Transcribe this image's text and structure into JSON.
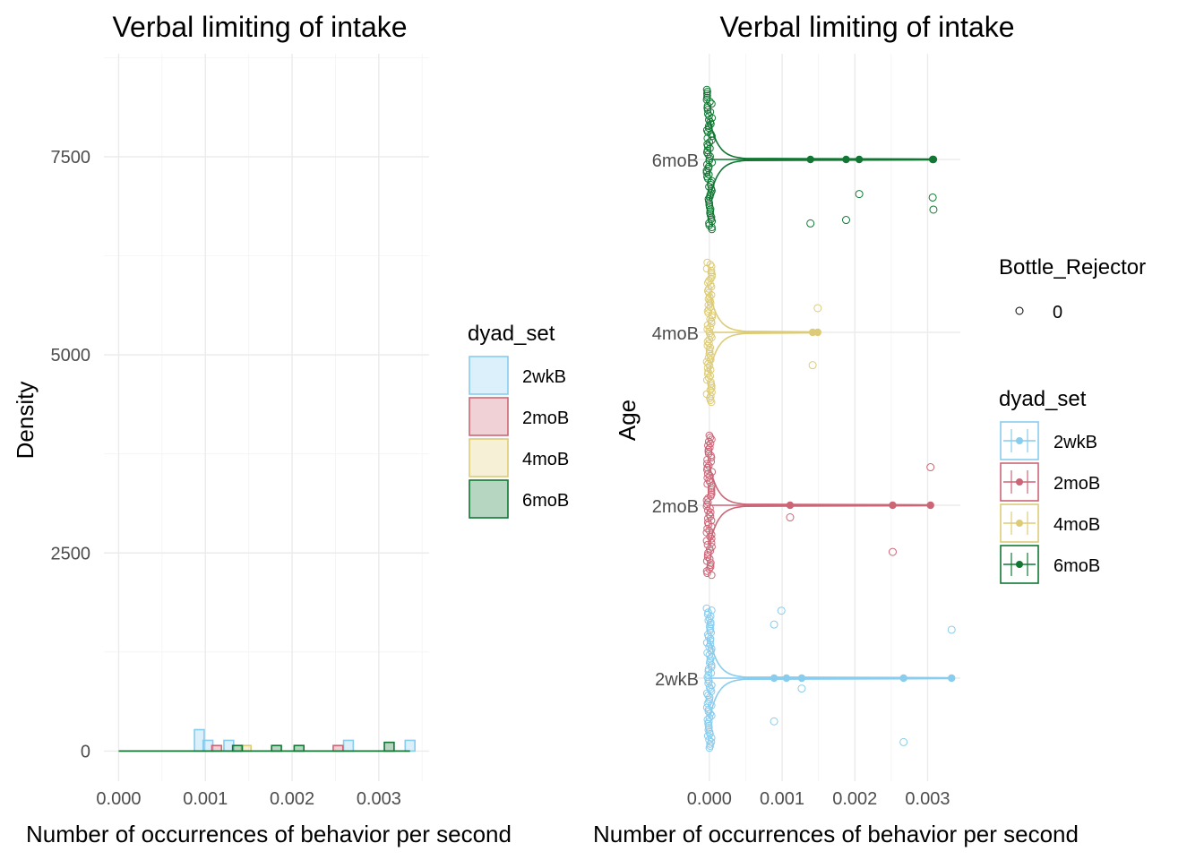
{
  "colors": {
    "2wkB": "#88CCEE",
    "2moB": "#CC6677",
    "4moB": "#DDCC77",
    "6moB": "#117733"
  },
  "chart_data": [
    {
      "type": "bar",
      "subtype": "stacked-histogram",
      "title": "Verbal limiting of intake",
      "xlabel": "Number of occurrences of behavior per second",
      "ylabel": "Density",
      "xlim": [
        -0.00017,
        0.00358
      ],
      "ylim": [
        -380,
        8800
      ],
      "xticks": [
        "0.000",
        "0.001",
        "0.002",
        "0.003"
      ],
      "yticks": [
        "0",
        "2500",
        "5000",
        "7500"
      ],
      "grid": true,
      "legend": {
        "title": "dyad_set",
        "position": "right",
        "entries": [
          "2wkB",
          "2moB",
          "4moB",
          "6moB"
        ]
      },
      "series": [
        {
          "name": "2wkB",
          "bins": [
            [
              0.00093,
              270
            ],
            [
              0.00103,
              135
            ],
            [
              0.00127,
              135
            ],
            [
              0.00265,
              135
            ],
            [
              0.00336,
              135
            ]
          ]
        },
        {
          "name": "2moB",
          "bins": [
            [
              0.00113,
              70
            ],
            [
              0.00253,
              70
            ]
          ]
        },
        {
          "name": "4moB",
          "bins": [
            [
              0.00147,
              70
            ]
          ]
        },
        {
          "name": "6moB",
          "bins": [
            [
              0.00137,
              70
            ],
            [
              0.00182,
              70
            ],
            [
              0.00208,
              70
            ],
            [
              0.00312,
              110
            ]
          ]
        }
      ]
    },
    {
      "type": "scatter",
      "subtype": "violin-with-jitter",
      "title": "Verbal limiting of intake",
      "xlabel": "Number of occurrences of behavior per second",
      "ylabel": "Age",
      "xlim": [
        -0.00017,
        0.00345
      ],
      "categories": [
        "2wkB",
        "2moB",
        "4moB",
        "6moB"
      ],
      "xticks": [
        "0.000",
        "0.001",
        "0.002",
        "0.003"
      ],
      "grid": true,
      "legend": [
        {
          "title": "Bottle_Rejector",
          "position": "right",
          "entries": [
            "0"
          ]
        },
        {
          "title": "dyad_set",
          "position": "right",
          "entries": [
            "2wkB",
            "2moB",
            "4moB",
            "6moB"
          ]
        }
      ],
      "series": [
        {
          "name": "2wkB",
          "nonzero_x": [
            0.00089,
            0.00106,
            0.00127,
            0.00267,
            0.00333
          ],
          "jitter_points": [
            [
              0.00089,
              0.31
            ],
            [
              0.00099,
              0.39
            ],
            [
              0.00127,
              -0.06
            ],
            [
              0.00089,
              -0.25
            ],
            [
              0.00267,
              -0.37
            ],
            [
              0.00333,
              0.28
            ]
          ]
        },
        {
          "name": "2moB",
          "nonzero_x": [
            0.00111,
            0.00252,
            0.00304
          ],
          "jitter_points": [
            [
              0.00111,
              -0.07
            ],
            [
              0.00252,
              -0.27
            ],
            [
              0.00304,
              0.22
            ]
          ]
        },
        {
          "name": "4moB",
          "nonzero_x": [
            0.00142,
            0.00149
          ],
          "jitter_points": [
            [
              0.00149,
              0.14
            ],
            [
              0.00142,
              -0.19
            ]
          ]
        },
        {
          "name": "6moB",
          "nonzero_x": [
            0.00139,
            0.00188,
            0.00206,
            0.00307,
            0.00308
          ],
          "jitter_points": [
            [
              0.00139,
              -0.37
            ],
            [
              0.00188,
              -0.35
            ],
            [
              0.00206,
              -0.2
            ],
            [
              0.00307,
              -0.22
            ],
            [
              0.00308,
              -0.29
            ]
          ]
        }
      ]
    }
  ]
}
